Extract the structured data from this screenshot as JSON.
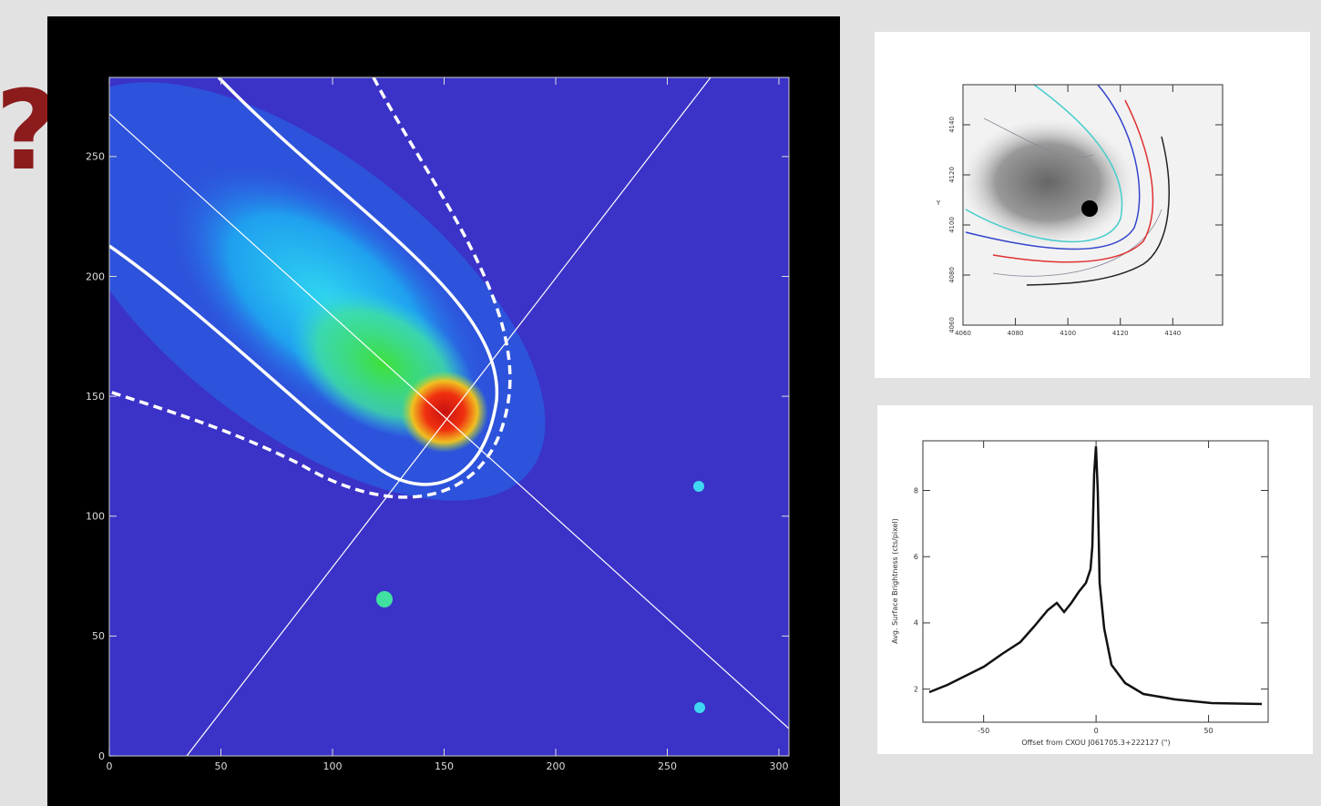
{
  "mark": "?",
  "main_plot": {
    "xlim": [
      0,
      304.5
    ],
    "ylim": [
      0,
      283
    ],
    "xticks": [
      0,
      50,
      100,
      150,
      200,
      250,
      300
    ],
    "yticks": [
      0,
      50,
      100,
      150,
      200,
      250
    ]
  },
  "contour_plot": {
    "y_label": "Y",
    "xlim": [
      4060,
      4159
    ],
    "ylim": [
      4060,
      4156
    ],
    "xticks": [
      4060,
      4080,
      4100,
      4120,
      4140
    ],
    "yticks": [
      4060,
      4080,
      4100,
      4120,
      4140
    ]
  },
  "profile_plot": {
    "x_label": "Offset from CXOU J061705.3+222127 (\")",
    "y_label": "Avg. Surface Brightness (cts/pixel)",
    "xlim": [
      -77,
      76.5
    ],
    "ylim": [
      1,
      9.5
    ],
    "xticks": [
      -50,
      0,
      50
    ],
    "yticks": [
      2,
      4,
      6,
      8
    ]
  }
}
